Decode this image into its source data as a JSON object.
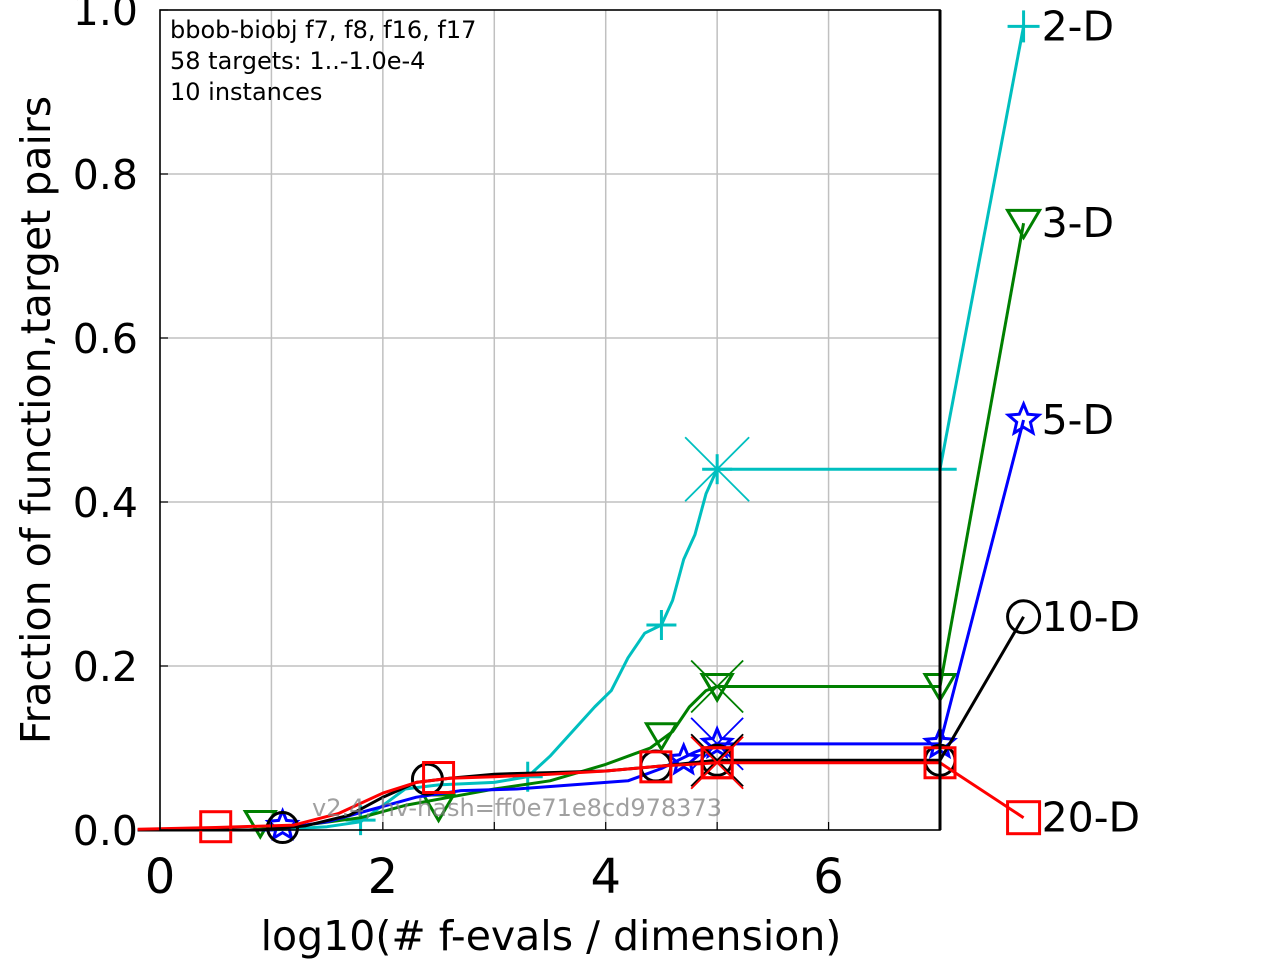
{
  "chart_data": {
    "type": "line",
    "annotation_lines": [
      "bbob-biobj f7, f8, f16, f17",
      "58 targets: 1..-1.0e-4",
      "10 instances"
    ],
    "watermark": "v2.4, hv-hash=ff0e71e8cd978373",
    "xlabel": "log10(# f-evals / dimension)",
    "ylabel": "Fraction of function,target pairs",
    "xlim": [
      0,
      7
    ],
    "ylim": [
      0,
      1.0
    ],
    "xticks": [
      "0",
      "2",
      "4",
      "6"
    ],
    "yticks": [
      "0.0",
      "0.2",
      "0.4",
      "0.6",
      "0.8",
      "1.0"
    ],
    "grid": true,
    "series": [
      {
        "name": "2-D",
        "color": "#00bfbf",
        "marker": "plus",
        "points": [
          [
            -0.2,
            0
          ],
          [
            1.0,
            0
          ],
          [
            1.5,
            0.004
          ],
          [
            1.8,
            0.01
          ],
          [
            2.0,
            0.03
          ],
          [
            2.2,
            0.05
          ],
          [
            2.5,
            0.055
          ],
          [
            3.0,
            0.058
          ],
          [
            3.3,
            0.065
          ],
          [
            3.5,
            0.09
          ],
          [
            3.7,
            0.12
          ],
          [
            3.9,
            0.15
          ],
          [
            4.05,
            0.17
          ],
          [
            4.2,
            0.21
          ],
          [
            4.35,
            0.24
          ],
          [
            4.5,
            0.25
          ],
          [
            4.6,
            0.28
          ],
          [
            4.7,
            0.33
          ],
          [
            4.8,
            0.36
          ],
          [
            4.9,
            0.41
          ],
          [
            5.0,
            0.44
          ],
          [
            7.15,
            0.44
          ]
        ],
        "markers": [
          [
            1.8,
            0.012
          ],
          [
            3.3,
            0.065
          ],
          [
            4.5,
            0.25
          ]
        ],
        "end_marker": [
          5.0,
          0.44
        ],
        "final_value": 0.98
      },
      {
        "name": "3-D",
        "color": "#008000",
        "marker": "triangle-down",
        "points": [
          [
            -0.2,
            0
          ],
          [
            0.8,
            0
          ],
          [
            1.2,
            0.004
          ],
          [
            1.8,
            0.015
          ],
          [
            2.2,
            0.03
          ],
          [
            2.6,
            0.04
          ],
          [
            3.0,
            0.05
          ],
          [
            3.5,
            0.06
          ],
          [
            4.0,
            0.08
          ],
          [
            4.4,
            0.1
          ],
          [
            4.6,
            0.12
          ],
          [
            4.75,
            0.15
          ],
          [
            4.9,
            0.17
          ],
          [
            5.0,
            0.175
          ],
          [
            7.0,
            0.175
          ]
        ],
        "markers": [
          [
            0.9,
            0.008
          ],
          [
            2.5,
            0.028
          ],
          [
            4.5,
            0.115
          ],
          [
            5.0,
            0.175
          ],
          [
            7.0,
            0.175
          ]
        ],
        "end_marker": [
          5.0,
          0.175
        ],
        "final_value": 0.74
      },
      {
        "name": "5-D",
        "color": "#0000ff",
        "marker": "star",
        "points": [
          [
            -0.2,
            0
          ],
          [
            1.0,
            0
          ],
          [
            1.5,
            0.01
          ],
          [
            1.9,
            0.025
          ],
          [
            2.3,
            0.04
          ],
          [
            2.7,
            0.048
          ],
          [
            3.2,
            0.05
          ],
          [
            3.7,
            0.055
          ],
          [
            4.2,
            0.06
          ],
          [
            4.5,
            0.075
          ],
          [
            4.8,
            0.095
          ],
          [
            5.0,
            0.105
          ],
          [
            7.0,
            0.105
          ]
        ],
        "markers": [
          [
            1.1,
            0.005
          ],
          [
            4.7,
            0.085
          ],
          [
            7.0,
            0.105
          ]
        ],
        "end_marker": [
          5.0,
          0.105
        ],
        "final_value": 0.5
      },
      {
        "name": "10-D",
        "color": "#000000",
        "marker": "circle",
        "points": [
          [
            -0.2,
            0
          ],
          [
            0.9,
            0
          ],
          [
            1.3,
            0.005
          ],
          [
            1.7,
            0.018
          ],
          [
            2.0,
            0.04
          ],
          [
            2.3,
            0.058
          ],
          [
            2.6,
            0.063
          ],
          [
            3.0,
            0.068
          ],
          [
            3.5,
            0.07
          ],
          [
            4.0,
            0.072
          ],
          [
            4.5,
            0.078
          ],
          [
            5.0,
            0.085
          ],
          [
            7.0,
            0.085
          ]
        ],
        "markers": [
          [
            1.1,
            0.003
          ],
          [
            2.4,
            0.062
          ],
          [
            4.45,
            0.078
          ],
          [
            7.0,
            0.085
          ]
        ],
        "end_marker": [
          5.0,
          0.085
        ],
        "final_value": 0.26
      },
      {
        "name": "20-D",
        "color": "#ff0000",
        "marker": "square",
        "points": [
          [
            -0.2,
            0.001
          ],
          [
            0.5,
            0.003
          ],
          [
            1.2,
            0.006
          ],
          [
            1.6,
            0.02
          ],
          [
            2.0,
            0.045
          ],
          [
            2.3,
            0.058
          ],
          [
            2.6,
            0.063
          ],
          [
            3.0,
            0.065
          ],
          [
            3.5,
            0.068
          ],
          [
            4.0,
            0.072
          ],
          [
            4.5,
            0.078
          ],
          [
            5.0,
            0.082
          ],
          [
            7.0,
            0.082
          ]
        ],
        "markers": [
          [
            0.5,
            0.004
          ],
          [
            2.5,
            0.064
          ],
          [
            4.45,
            0.077
          ],
          [
            5.0,
            0.082
          ],
          [
            7.0,
            0.082
          ]
        ],
        "end_marker": [
          5.0,
          0.082
        ],
        "final_value": 0.015
      }
    ]
  }
}
